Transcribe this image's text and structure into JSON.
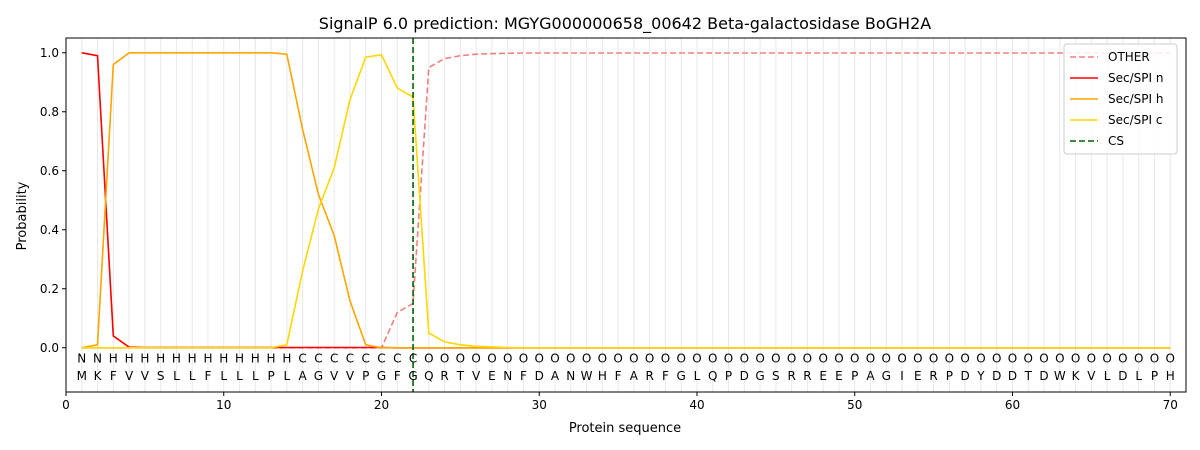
{
  "chart_data": {
    "type": "line",
    "title": "SignalP 6.0 prediction: MGYG000000658_00642 Beta-galactosidase BoGH2A",
    "xlabel": "Protein sequence",
    "ylabel": "Probability",
    "xlim": [
      0,
      71
    ],
    "ylim": [
      -0.15,
      1.05
    ],
    "x_ticks": [
      0,
      10,
      20,
      30,
      40,
      50,
      60,
      70
    ],
    "y_ticks": [
      0.0,
      0.2,
      0.4,
      0.6,
      0.8,
      1.0
    ],
    "grid": "vertical lines at every residue position",
    "legend_position": "top-right",
    "sequence": [
      "M",
      "K",
      "F",
      "V",
      "V",
      "S",
      "L",
      "L",
      "F",
      "L",
      "L",
      "L",
      "P",
      "L",
      "A",
      "G",
      "V",
      "V",
      "P",
      "G",
      "F",
      "G",
      "Q",
      "R",
      "T",
      "V",
      "E",
      "N",
      "F",
      "D",
      "A",
      "N",
      "W",
      "H",
      "F",
      "A",
      "R",
      "F",
      "G",
      "L",
      "Q",
      "P",
      "D",
      "G",
      "S",
      "R",
      "R",
      "E",
      "E",
      "P",
      "A",
      "G",
      "I",
      "E",
      "R",
      "P",
      "D",
      "Y",
      "D",
      "D",
      "T",
      "D",
      "W",
      "K",
      "V",
      "L",
      "D",
      "L",
      "P",
      "H"
    ],
    "labels": [
      "N",
      "N",
      "H",
      "H",
      "H",
      "H",
      "H",
      "H",
      "H",
      "H",
      "H",
      "H",
      "H",
      "H",
      "C",
      "C",
      "C",
      "C",
      "C",
      "C",
      "C",
      "C",
      "O",
      "O",
      "O",
      "O",
      "O",
      "O",
      "O",
      "O",
      "O",
      "O",
      "O",
      "O",
      "O",
      "O",
      "O",
      "O",
      "O",
      "O",
      "O",
      "O",
      "O",
      "O",
      "O",
      "O",
      "O",
      "O",
      "O",
      "O",
      "O",
      "O",
      "O",
      "O",
      "O",
      "O",
      "O",
      "O",
      "O",
      "O",
      "O",
      "O",
      "O",
      "O",
      "O",
      "O",
      "O",
      "O",
      "O",
      "O"
    ],
    "label_colors": {
      "N": "#ff0000",
      "H": "#ffa500",
      "C": "#ffd700",
      "O": "#808080"
    },
    "cleavage_site": 22,
    "series": [
      {
        "name": "OTHER",
        "color": "#f08080",
        "dash": true,
        "values": [
          0.0,
          0.0,
          0.0,
          0.0,
          0.0,
          0.0,
          0.0,
          0.0,
          0.0,
          0.0,
          0.0,
          0.0,
          0.0,
          0.0,
          0.0,
          0.0,
          0.0,
          0.0,
          0.0,
          0.0,
          0.12,
          0.15,
          0.95,
          0.98,
          0.99,
          0.995,
          0.997,
          0.998,
          0.999,
          0.999,
          0.999,
          0.999,
          0.999,
          0.999,
          0.999,
          0.999,
          0.999,
          0.999,
          0.999,
          0.999,
          0.999,
          0.999,
          0.999,
          0.999,
          0.999,
          0.999,
          0.999,
          0.999,
          0.999,
          0.999,
          0.999,
          0.999,
          0.999,
          0.999,
          0.999,
          0.999,
          0.999,
          0.999,
          0.999,
          0.999,
          0.999,
          0.999,
          0.999,
          0.999,
          0.999,
          0.999,
          0.999,
          0.999,
          0.999,
          0.999
        ]
      },
      {
        "name": "Sec/SPI n",
        "color": "#ff0000",
        "dash": false,
        "values": [
          1.0,
          0.99,
          0.04,
          0.002,
          0.001,
          0.001,
          0.001,
          0.001,
          0.001,
          0.001,
          0.001,
          0.001,
          0.001,
          0.001,
          0.001,
          0.001,
          0.001,
          0.001,
          0.001,
          0.001,
          0.0,
          0.0,
          0.0,
          0.0,
          0.0,
          0.0,
          0.0,
          0.0,
          0.0,
          0.0,
          0.0,
          0.0,
          0.0,
          0.0,
          0.0,
          0.0,
          0.0,
          0.0,
          0.0,
          0.0,
          0.0,
          0.0,
          0.0,
          0.0,
          0.0,
          0.0,
          0.0,
          0.0,
          0.0,
          0.0,
          0.0,
          0.0,
          0.0,
          0.0,
          0.0,
          0.0,
          0.0,
          0.0,
          0.0,
          0.0,
          0.0,
          0.0,
          0.0,
          0.0,
          0.0,
          0.0,
          0.0,
          0.0,
          0.0,
          0.0
        ]
      },
      {
        "name": "Sec/SPI h",
        "color": "#ffa500",
        "dash": false,
        "values": [
          0.0,
          0.01,
          0.96,
          1.0,
          1.0,
          1.0,
          1.0,
          1.0,
          1.0,
          1.0,
          1.0,
          1.0,
          1.0,
          0.995,
          0.74,
          0.52,
          0.38,
          0.16,
          0.01,
          0.0,
          0.0,
          0.0,
          0.0,
          0.0,
          0.0,
          0.0,
          0.0,
          0.0,
          0.0,
          0.0,
          0.0,
          0.0,
          0.0,
          0.0,
          0.0,
          0.0,
          0.0,
          0.0,
          0.0,
          0.0,
          0.0,
          0.0,
          0.0,
          0.0,
          0.0,
          0.0,
          0.0,
          0.0,
          0.0,
          0.0,
          0.0,
          0.0,
          0.0,
          0.0,
          0.0,
          0.0,
          0.0,
          0.0,
          0.0,
          0.0,
          0.0,
          0.0,
          0.0,
          0.0,
          0.0,
          0.0,
          0.0,
          0.0,
          0.0,
          0.0
        ]
      },
      {
        "name": "Sec/SPI c",
        "color": "#ffd700",
        "dash": false,
        "values": [
          0.0,
          0.0,
          0.0,
          0.0,
          0.0,
          0.0,
          0.0,
          0.0,
          0.0,
          0.0,
          0.0,
          0.0,
          0.0,
          0.01,
          0.26,
          0.47,
          0.61,
          0.84,
          0.985,
          0.993,
          0.88,
          0.85,
          0.05,
          0.02,
          0.01,
          0.005,
          0.003,
          0.001,
          0.0,
          0.0,
          0.0,
          0.0,
          0.0,
          0.0,
          0.0,
          0.0,
          0.0,
          0.0,
          0.0,
          0.0,
          0.0,
          0.0,
          0.0,
          0.0,
          0.0,
          0.0,
          0.0,
          0.0,
          0.0,
          0.0,
          0.0,
          0.0,
          0.0,
          0.0,
          0.0,
          0.0,
          0.0,
          0.0,
          0.0,
          0.0,
          0.0,
          0.0,
          0.0,
          0.0,
          0.0,
          0.0,
          0.0,
          0.0,
          0.0,
          0.0
        ]
      }
    ],
    "cs_series": {
      "name": "CS",
      "color": "#006400",
      "dash": true
    }
  }
}
